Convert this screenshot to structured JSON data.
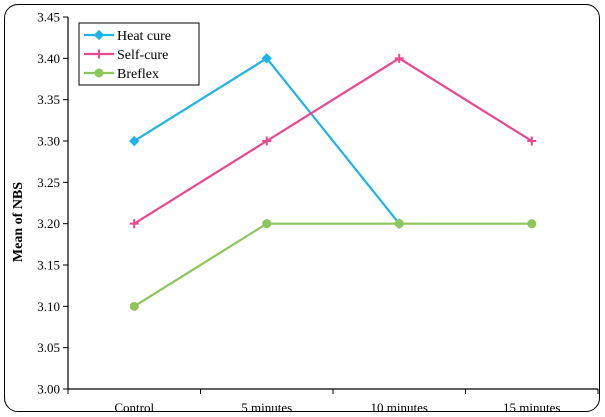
{
  "chart_data": {
    "type": "line",
    "title": "",
    "xlabel": "",
    "ylabel": "Mean of NBS",
    "categories": [
      "Control",
      "5 minutes",
      "10 minutes",
      "15 minutes"
    ],
    "ylim": [
      3.0,
      3.45
    ],
    "ytick_step": 0.05,
    "yticks": [
      "3.00",
      "3.05",
      "3.10",
      "3.15",
      "3.20",
      "3.25",
      "3.30",
      "3.35",
      "3.40",
      "3.45"
    ],
    "grid": false,
    "legend_position": "top-left",
    "series": [
      {
        "name": "Heat cure",
        "values": [
          3.3,
          3.4,
          3.2,
          null
        ],
        "color": "#1EB4E8",
        "marker": "diamond"
      },
      {
        "name": "Self-cure",
        "values": [
          3.2,
          3.3,
          3.4,
          3.3
        ],
        "color": "#E8488E",
        "marker": "plus"
      },
      {
        "name": "Breflex",
        "values": [
          3.1,
          3.2,
          3.2,
          3.2
        ],
        "color": "#8CC65C",
        "marker": "circle"
      }
    ]
  }
}
